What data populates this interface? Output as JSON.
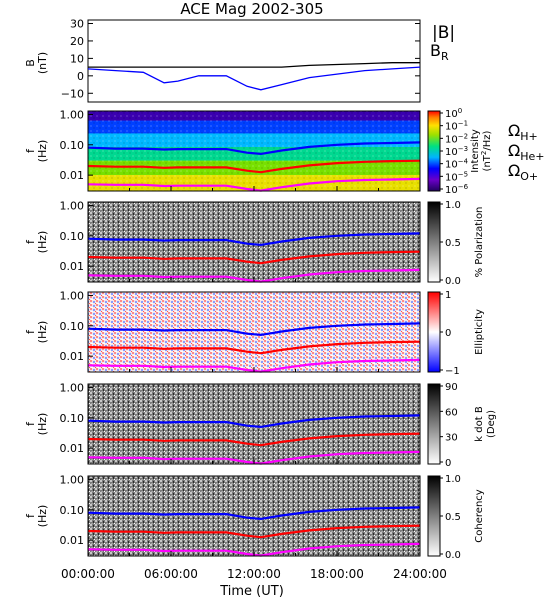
{
  "title": "ACE Mag 2002-305",
  "x_axis": {
    "label": "Time (UT)",
    "ticks": [
      "00:00:00",
      "06:00:00",
      "12:00:00",
      "18:00:00",
      "24:00:00"
    ]
  },
  "top_panel": {
    "ylabel_line1": "B",
    "ylabel_line2": "(nT)",
    "y_ticks": [
      "30",
      "20",
      "10",
      "0",
      "−10"
    ],
    "legend": [
      {
        "label": "|B|",
        "color": "#000000"
      },
      {
        "label": "B",
        "sub": "R",
        "color": "#0000ff"
      }
    ]
  },
  "freq_axis": {
    "ylabel_line1": "f",
    "ylabel_line2": "(Hz)",
    "ticks": [
      "1.00",
      "0.10",
      "0.01"
    ]
  },
  "gyro_legend": [
    {
      "sym": "Ω",
      "sub": "H+",
      "color": "#0000ff"
    },
    {
      "sym": "Ω",
      "sub": "He+",
      "color": "#ff0000"
    },
    {
      "sym": "Ω",
      "sub": "O+",
      "color": "#ff00ff"
    }
  ],
  "panels": [
    {
      "key": "intensity",
      "colorbar": "rainbow",
      "cb_label": "Intensity",
      "cb_unit_pre": "(nT",
      "cb_unit_sup": "2",
      "cb_unit_post": "/Hz)",
      "cb_ticks": [
        {
          "base": "10",
          "exp": "0"
        },
        {
          "base": "10",
          "exp": "−1"
        },
        {
          "base": "10",
          "exp": "−2"
        },
        {
          "base": "10",
          "exp": "−3"
        },
        {
          "base": "10",
          "exp": "−4"
        },
        {
          "base": "10",
          "exp": "−5"
        },
        {
          "base": "10",
          "exp": "−6"
        }
      ]
    },
    {
      "key": "polarization",
      "colorbar": "gray",
      "cb_label": "% Polarization",
      "cb_ticks": [
        "1.0",
        "0.5",
        "0.0"
      ]
    },
    {
      "key": "ellipticity",
      "colorbar": "bwr",
      "cb_label": "Ellipticity",
      "cb_ticks": [
        "1",
        "0",
        "−1"
      ]
    },
    {
      "key": "kdotb",
      "colorbar": "gray",
      "cb_label": "k dot B",
      "cb_label2": "(Deg)",
      "cb_ticks": [
        "90",
        "60",
        "30",
        "0"
      ]
    },
    {
      "key": "coherency",
      "colorbar": "gray",
      "cb_label": "Coherency",
      "cb_ticks": [
        "1.0",
        "0.5",
        "0.0"
      ]
    }
  ],
  "chart_data": {
    "type": "line",
    "title": "ACE Mag 2002-305",
    "xlabel": "Time (UT)",
    "x_hours": [
      0,
      2,
      4,
      5.5,
      6.5,
      8,
      10,
      11.5,
      12.5,
      14,
      16,
      18,
      20,
      22,
      24
    ],
    "xlim_hours": [
      0,
      24
    ],
    "series": [
      {
        "name": "|B|",
        "ylabel": "B (nT)",
        "ylim": [
          -15,
          32
        ],
        "values": [
          5,
          5,
          5,
          5,
          5,
          5,
          5,
          5,
          5,
          5,
          6,
          6.5,
          7,
          7.5,
          7.5
        ]
      },
      {
        "name": "B_R",
        "ylabel": "B (nT)",
        "ylim": [
          -15,
          32
        ],
        "values": [
          4,
          3,
          2,
          -4,
          -3,
          0,
          0,
          -6,
          -8,
          -5,
          -1,
          1,
          3,
          4,
          5
        ]
      },
      {
        "name": "Ω H+",
        "ylabel": "f (Hz)",
        "scale": "log",
        "ylim": [
          0.003,
          1.3
        ],
        "values": [
          0.08,
          0.075,
          0.075,
          0.07,
          0.072,
          0.072,
          0.072,
          0.055,
          0.05,
          0.065,
          0.085,
          0.1,
          0.11,
          0.115,
          0.12
        ]
      },
      {
        "name": "Ω He+",
        "ylabel": "f (Hz)",
        "scale": "log",
        "ylim": [
          0.003,
          1.3
        ],
        "values": [
          0.02,
          0.019,
          0.019,
          0.0175,
          0.018,
          0.018,
          0.018,
          0.014,
          0.0125,
          0.016,
          0.021,
          0.025,
          0.0275,
          0.029,
          0.03
        ]
      },
      {
        "name": "Ω O+",
        "ylabel": "f (Hz)",
        "scale": "log",
        "ylim": [
          0.003,
          1.3
        ],
        "values": [
          0.005,
          0.0048,
          0.0048,
          0.0044,
          0.0045,
          0.0045,
          0.0045,
          0.0035,
          0.0031,
          0.004,
          0.0053,
          0.0063,
          0.0069,
          0.0072,
          0.0075
        ]
      }
    ]
  }
}
